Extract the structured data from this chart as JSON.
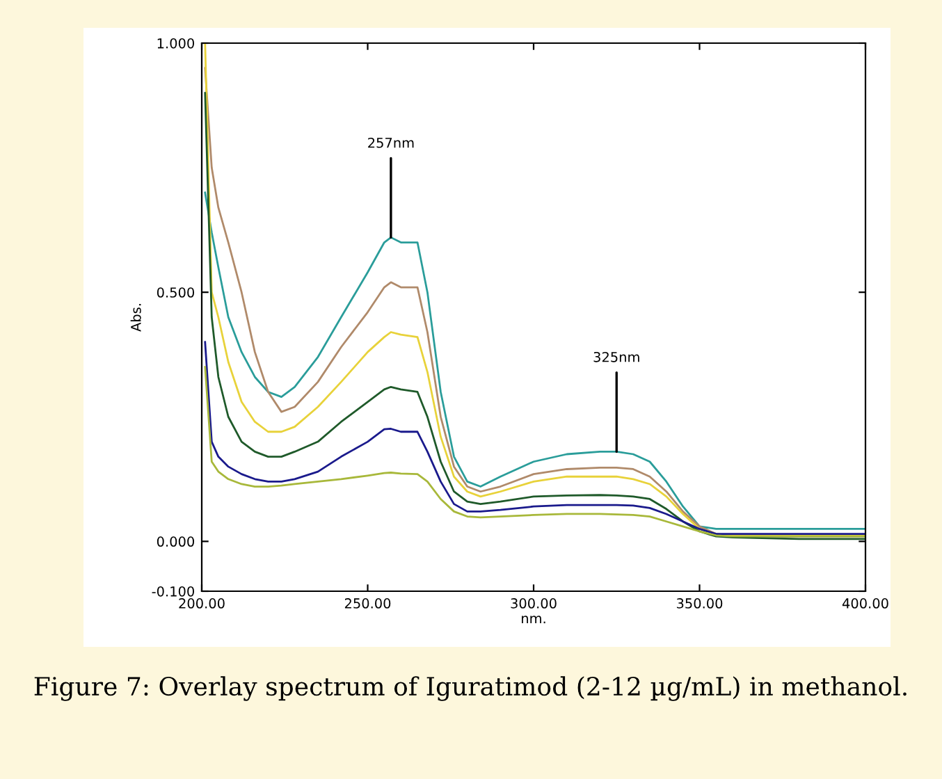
{
  "chart_data": {
    "type": "line",
    "xlabel": "nm.",
    "ylabel": "Abs.",
    "x": [
      201,
      203,
      205,
      208,
      212,
      216,
      220,
      224,
      228,
      235,
      242,
      250,
      255,
      257,
      260,
      265,
      268,
      272,
      276,
      280,
      284,
      290,
      300,
      310,
      320,
      325,
      330,
      335,
      340,
      345,
      350,
      355,
      360,
      380,
      400
    ],
    "series": [
      {
        "color": "#2a9d9a",
        "values": [
          0.7,
          0.62,
          0.55,
          0.45,
          0.38,
          0.33,
          0.3,
          0.29,
          0.31,
          0.37,
          0.45,
          0.54,
          0.6,
          0.61,
          0.6,
          0.6,
          0.5,
          0.3,
          0.17,
          0.12,
          0.11,
          0.13,
          0.16,
          0.175,
          0.18,
          0.18,
          0.175,
          0.16,
          0.12,
          0.07,
          0.03,
          0.025,
          0.025,
          0.025,
          0.025
        ]
      },
      {
        "color": "#b08a6a",
        "values": [
          0.95,
          0.75,
          0.67,
          0.6,
          0.5,
          0.38,
          0.3,
          0.26,
          0.27,
          0.32,
          0.39,
          0.46,
          0.51,
          0.52,
          0.51,
          0.51,
          0.42,
          0.25,
          0.15,
          0.11,
          0.1,
          0.11,
          0.135,
          0.145,
          0.148,
          0.148,
          0.145,
          0.13,
          0.1,
          0.06,
          0.03,
          0.015,
          0.01,
          0.01,
          0.01
        ]
      },
      {
        "color": "#e8d23a",
        "values": [
          1.0,
          0.5,
          0.45,
          0.36,
          0.28,
          0.24,
          0.22,
          0.22,
          0.23,
          0.27,
          0.32,
          0.38,
          0.41,
          0.42,
          0.415,
          0.41,
          0.34,
          0.21,
          0.13,
          0.1,
          0.09,
          0.1,
          0.12,
          0.13,
          0.13,
          0.13,
          0.125,
          0.115,
          0.09,
          0.055,
          0.025,
          0.015,
          0.012,
          0.012,
          0.012
        ]
      },
      {
        "color": "#1f5a2a",
        "values": [
          0.9,
          0.45,
          0.33,
          0.25,
          0.2,
          0.18,
          0.17,
          0.17,
          0.18,
          0.2,
          0.24,
          0.28,
          0.305,
          0.31,
          0.305,
          0.3,
          0.25,
          0.16,
          0.1,
          0.08,
          0.075,
          0.08,
          0.09,
          0.092,
          0.093,
          0.092,
          0.09,
          0.085,
          0.065,
          0.04,
          0.02,
          0.01,
          0.008,
          0.005,
          0.005
        ]
      },
      {
        "color": "#1a1a8c",
        "values": [
          0.4,
          0.2,
          0.17,
          0.15,
          0.135,
          0.125,
          0.12,
          0.12,
          0.125,
          0.14,
          0.17,
          0.2,
          0.225,
          0.226,
          0.22,
          0.22,
          0.18,
          0.12,
          0.075,
          0.06,
          0.06,
          0.063,
          0.07,
          0.073,
          0.073,
          0.073,
          0.072,
          0.067,
          0.055,
          0.04,
          0.025,
          0.015,
          0.015,
          0.015,
          0.015
        ]
      },
      {
        "color": "#a8b83a",
        "values": [
          0.35,
          0.16,
          0.14,
          0.125,
          0.115,
          0.11,
          0.11,
          0.112,
          0.115,
          0.12,
          0.125,
          0.132,
          0.137,
          0.138,
          0.136,
          0.135,
          0.12,
          0.085,
          0.06,
          0.05,
          0.048,
          0.05,
          0.053,
          0.055,
          0.055,
          0.054,
          0.053,
          0.05,
          0.04,
          0.03,
          0.02,
          0.012,
          0.01,
          0.01,
          0.01
        ]
      }
    ],
    "xlim": [
      200,
      400
    ],
    "xticks": [
      {
        "value": 200,
        "label": "200.00"
      },
      {
        "value": 250,
        "label": "250.00"
      },
      {
        "value": 300,
        "label": "300.00"
      },
      {
        "value": 350,
        "label": "350.00"
      },
      {
        "value": 400,
        "label": "400.00"
      }
    ],
    "ylim": [
      -0.1,
      1.0
    ],
    "yticks": [
      {
        "value": -0.1,
        "label": "-0.100"
      },
      {
        "value": 0,
        "label": "0.000"
      },
      {
        "value": 0.5,
        "label": "0.500"
      },
      {
        "value": 1.0,
        "label": "1.000"
      }
    ],
    "annotations": [
      {
        "text": "257nm",
        "x": 257,
        "y": 0.61
      },
      {
        "text": "325nm",
        "x": 325,
        "y": 0.18
      },
      "Figure 7: Overlay spectrum of Iguratimod (2-12 µg/mL) in methanol."
    ],
    "grid": false,
    "legend": false,
    "marker": "none",
    "line_style": "solid"
  }
}
